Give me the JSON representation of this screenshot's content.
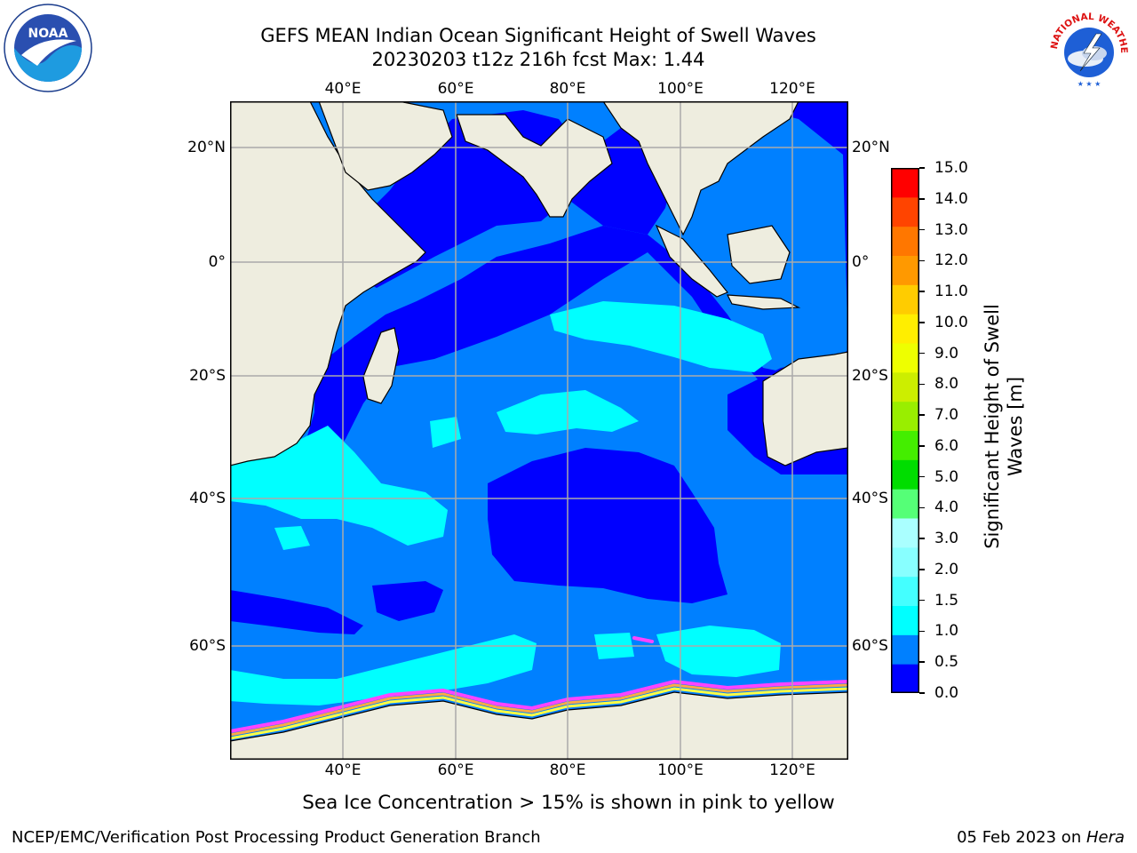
{
  "title": {
    "line1": "GEFS MEAN Indian Ocean Significant Height of Swell Waves",
    "line2": "20230203 t12z 216h fcst   Max: 1.44"
  },
  "map": {
    "lon_labels": [
      "40°E",
      "60°E",
      "80°E",
      "100°E",
      "120°E"
    ],
    "lat_labels": [
      "20°N",
      "0°",
      "20°S",
      "40°S",
      "60°S"
    ],
    "land_color": "#EEEDDF",
    "ice_colors": [
      "#FF44FF",
      "#FFAA44",
      "#FFFF44"
    ]
  },
  "colorbar": {
    "title_line1": "Significant Height of Swell",
    "title_line2": "Waves [m]",
    "ticks": [
      "0.0",
      "0.5",
      "1.0",
      "1.5",
      "2.0",
      "3.0",
      "4.0",
      "5.0",
      "6.0",
      "7.0",
      "8.0",
      "9.0",
      "10.0",
      "11.0",
      "12.0",
      "13.0",
      "14.0",
      "15.0"
    ],
    "colors": [
      "#0000FF",
      "#0080FF",
      "#00FFFF",
      "#44FFFF",
      "#88FFFF",
      "#AAFFFF",
      "#55FF77",
      "#00DD00",
      "#44EE00",
      "#99EE00",
      "#CCEE00",
      "#EEFF00",
      "#FFEE00",
      "#FFCC00",
      "#FF9900",
      "#FF7700",
      "#FF4400",
      "#FF0000"
    ]
  },
  "note": "Sea Ice Concentration > 15% is shown in pink to yellow",
  "footer": {
    "left": "NCEP/EMC/Verification Post Processing Product Generation Branch",
    "right_prefix": "05 Feb 2023 on ",
    "right_host": "Hera"
  },
  "logos": {
    "noaa_text": "NOAA",
    "nws_text": "NATIONAL WEATHER SERVICE"
  }
}
